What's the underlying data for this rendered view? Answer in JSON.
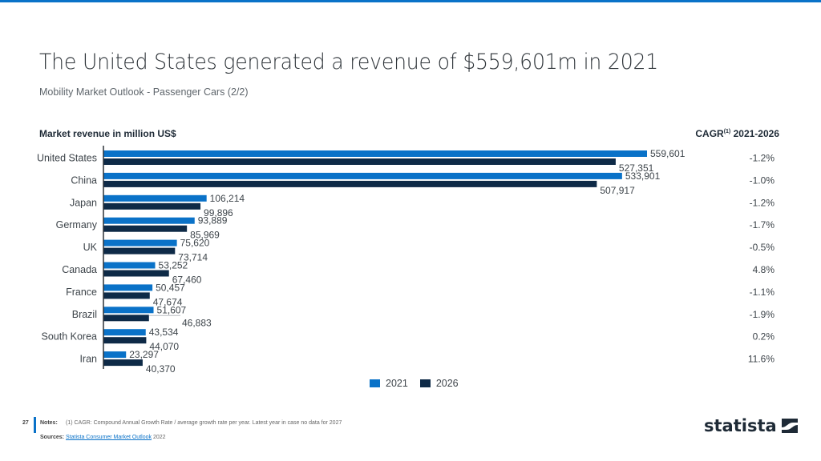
{
  "header": {
    "title": "The United States generated a revenue of $559,601m in 2021",
    "subtitle": "Mobility Market Outlook - Passenger Cars (2/2)"
  },
  "colors": {
    "accent": "#0a72c8",
    "series_2021": "#0a72c8",
    "series_2026": "#0e2a47",
    "text": "#3d444a"
  },
  "chart_data": {
    "type": "bar",
    "orientation": "horizontal",
    "title": "The United States generated a revenue of $559,601m in 2021",
    "subtitle": "Mobility Market Outlook - Passenger Cars (2/2)",
    "ylabel": "Market revenue in million US$",
    "xlabel": "",
    "categories": [
      "United States",
      "China",
      "Japan",
      "Germany",
      "UK",
      "Canada",
      "France",
      "Brazil",
      "South Korea",
      "Iran"
    ],
    "series": [
      {
        "name": "2021",
        "values": [
          559601,
          533901,
          106214,
          93889,
          75620,
          53252,
          50457,
          51607,
          43534,
          23297
        ]
      },
      {
        "name": "2026",
        "values": [
          527351,
          507917,
          99896,
          85969,
          73714,
          67460,
          47674,
          46883,
          44070,
          40370
        ]
      }
    ],
    "value_labels": {
      "2021": [
        "559,601",
        "533,901",
        "106,214",
        "93,889",
        "75,620",
        "53,252",
        "50,457",
        "51,607",
        "43,534",
        "23,297"
      ],
      "2026": [
        "527,351",
        "507,917",
        "99,896",
        "85,969",
        "73,714",
        "67,460",
        "47,674",
        "46,883",
        "44,070",
        "40,370"
      ]
    },
    "extra_column": {
      "title": "CAGR",
      "title_sup": "(1)",
      "title_suffix": " 2021-2026",
      "values": [
        "-1.2%",
        "-1.0%",
        "-1.2%",
        "-1.7%",
        "-0.5%",
        "4.8%",
        "-1.1%",
        "-1.9%",
        "0.2%",
        "11.6%"
      ]
    },
    "xlim": [
      0,
      560000
    ],
    "grid": false,
    "legend": {
      "position": "bottom-center",
      "entries": [
        "2021",
        "2026"
      ]
    }
  },
  "footer": {
    "page_number": "27",
    "notes_label": "Notes:",
    "notes_text": "(1) CAGR: Compound Annual Growth Rate / average growth rate per year. Latest year in case no data for 2027",
    "sources_label": "Sources:",
    "sources_link": "Statista Consumer Market Outlook",
    "sources_year": " 2022",
    "logo_text": "statista"
  }
}
